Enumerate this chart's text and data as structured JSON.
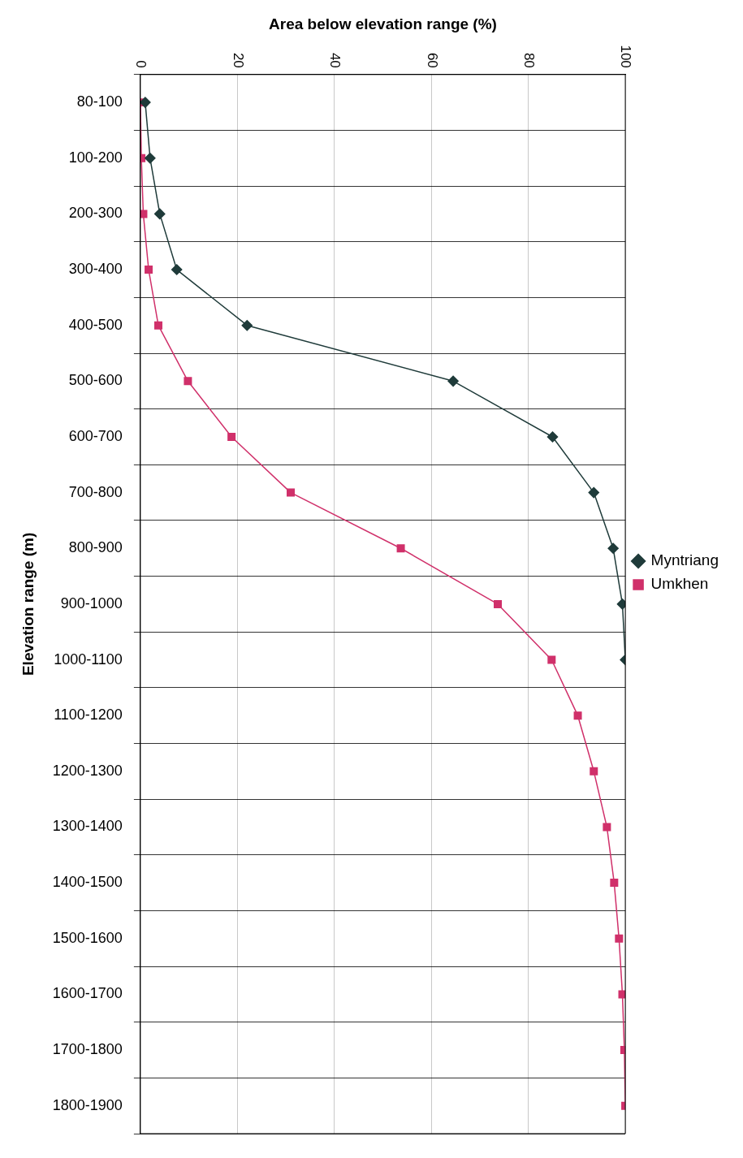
{
  "chart_data": {
    "type": "line",
    "orientation": "horizontal",
    "xlabel": "Area below elevation range (%)",
    "ylabel": "Elevation range (m)",
    "categories": [
      "80-100",
      "100-200",
      "200-300",
      "300-400",
      "400-500",
      "500-600",
      "600-700",
      "700-800",
      "800-900",
      "900-1000",
      "1000-1100",
      "1100-1200",
      "1200-1300",
      "1300-1400",
      "1400-1500",
      "1500-1600",
      "1600-1700",
      "1700-1800",
      "1800-1900"
    ],
    "series": [
      {
        "name": "Myntriang",
        "color": "#1f3b3a",
        "marker": "diamond",
        "values": [
          1,
          2,
          4,
          7.5,
          22,
          64.5,
          85,
          93.5,
          97.5,
          99.4,
          100,
          null,
          null,
          null,
          null,
          null,
          null,
          null,
          null
        ]
      },
      {
        "name": "Umkhen",
        "color": "#d0306a",
        "marker": "square",
        "values": [
          0,
          0.2,
          0.6,
          1.7,
          3.7,
          9.8,
          18.8,
          31,
          53.7,
          73.7,
          84.8,
          90.2,
          93.5,
          96.2,
          97.7,
          98.7,
          99.4,
          99.8,
          100
        ]
      }
    ],
    "xlim": [
      0,
      100
    ],
    "xticks": [
      0,
      20,
      40,
      60,
      80,
      100
    ],
    "grid": "x",
    "legend": "right",
    "line_style": "solid"
  }
}
